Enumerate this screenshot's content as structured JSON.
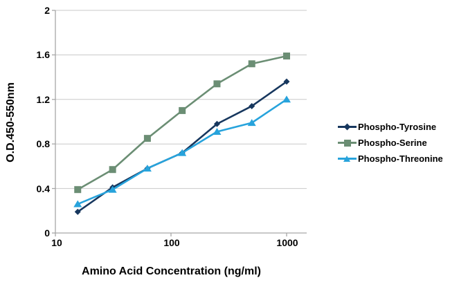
{
  "chart_data": {
    "type": "line",
    "title": "",
    "xlabel": "Amino Acid Concentration (ng/ml)",
    "ylabel": "O.D.450-550nm",
    "x_scale": "log",
    "x": [
      15.6,
      31.25,
      62.5,
      125,
      250,
      500,
      1000
    ],
    "xlim": [
      10,
      1470
    ],
    "ylim": [
      0,
      2
    ],
    "xticks": [
      "10",
      "100",
      "1000"
    ],
    "xtick_values": [
      10,
      100,
      1000
    ],
    "yticks": [
      "0",
      "0.4",
      "0.8",
      "1.2",
      "1.6",
      "2"
    ],
    "ytick_values": [
      0,
      0.4,
      0.8,
      1.2,
      1.6,
      2
    ],
    "grid": "horizontal",
    "legend_position": "right",
    "series": [
      {
        "name": "Phospho-Tyrosine",
        "color": "#17375E",
        "marker": "diamond",
        "values": [
          0.19,
          0.41,
          0.58,
          0.72,
          0.98,
          1.14,
          1.36
        ]
      },
      {
        "name": "Phospho-Serine",
        "color": "#6B8E74",
        "marker": "square",
        "values": [
          0.39,
          0.57,
          0.85,
          1.1,
          1.34,
          1.52,
          1.59
        ]
      },
      {
        "name": "Phospho-Threonine",
        "color": "#27A3DC",
        "marker": "triangle",
        "values": [
          0.26,
          0.39,
          0.58,
          0.72,
          0.91,
          0.99,
          1.2
        ]
      }
    ],
    "colors": {
      "background": "#FFFFFF",
      "gridline": "#C8C8C8",
      "axis": "#A6A6A6",
      "text": "#000000"
    }
  }
}
